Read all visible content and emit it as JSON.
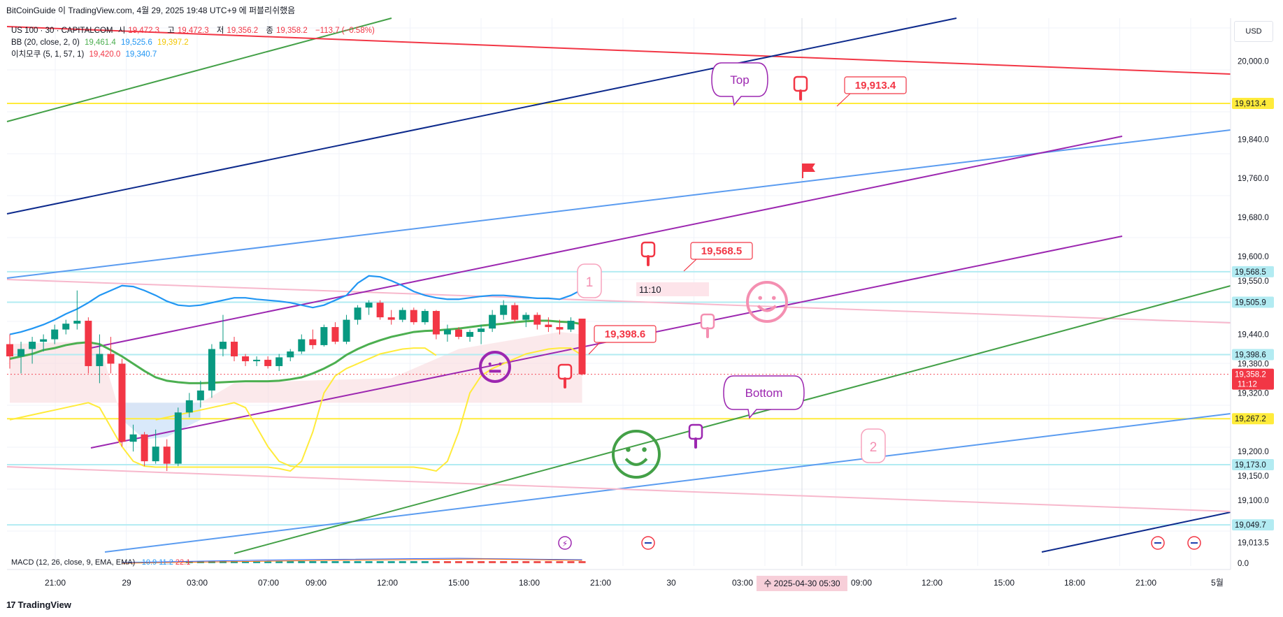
{
  "header": {
    "credit": "BitCoinGuide 이 TradingView.com, 4월 29, 2025 19:48 UTC+9 에 퍼블리쉬했음"
  },
  "legend": {
    "symbol": "US 100 · 30 · CAPITALCOM",
    "ohlc": [
      {
        "label": "시",
        "value": "19,472.3"
      },
      {
        "label": "고",
        "value": "19,472.3"
      },
      {
        "label": "저",
        "value": "19,356.2"
      },
      {
        "label": "종",
        "value": "19,358.2"
      }
    ],
    "change": "−113.7 (−0.58%)",
    "bb": {
      "label": "BB (20, close, 2, 0)",
      "values": [
        "19,461.4",
        "19,525.6",
        "19,397.2"
      ]
    },
    "ichimoku": {
      "label": "이치모쿠 (5, 1, 57, 1)",
      "values": [
        "19,420.0",
        "19,340.7"
      ]
    },
    "macd": {
      "label": "MACD (12, 26, close, 9, EMA, EMA)",
      "values": [
        "−10.9",
        "11.2",
        "22.1"
      ]
    }
  },
  "currency": "USD",
  "footer": {
    "brand": "TradingView",
    "mark": "17"
  },
  "colors": {
    "up": "#089981",
    "down": "#f23645",
    "bb_mid": "#4caf50",
    "bb_band": "#2196f3",
    "ichimoku": "#ffeb3b",
    "channel_purple": "#9c27b0",
    "navy": "#0d2a8c",
    "light_blue": "#5b9cf0",
    "pink": "#f7b8cc",
    "cyan": "#b2ebf2",
    "yellow_level": "#ffeb3b"
  },
  "chart_data": {
    "type": "candlestick",
    "y_axis_ticks": [
      "20,000.0",
      "19,840.0",
      "19,760.0",
      "19,680.0",
      "19,600.0",
      "19,550.0",
      "19,440.0",
      "19,380.0",
      "19,320.0",
      "19,200.0",
      "19,150.0",
      "19,100.0",
      "19,013.5",
      "0.0"
    ],
    "x_axis_ticks": [
      "21:00",
      "29",
      "03:00",
      "07:00",
      "09:00",
      "12:00",
      "15:00",
      "18:00",
      "21:00",
      "30",
      "03:00",
      "09:00",
      "12:00",
      "15:00",
      "18:00",
      "21:00",
      "5월"
    ],
    "crosshair_x_label": "수 2025-04-30 05:30",
    "price_labels": [
      {
        "value": "19,913.4",
        "price": 19913.4,
        "style": "yellow"
      },
      {
        "value": "19,568.5",
        "price": 19568.5,
        "style": "cyan"
      },
      {
        "value": "19,505.9",
        "price": 19505.9,
        "style": "cyan"
      },
      {
        "value": "19,398.6",
        "price": 19398.6,
        "style": "cyan"
      },
      {
        "value": "19,358.2",
        "price": 19358.2,
        "style": "last",
        "sub": "11:12"
      },
      {
        "value": "19,267.2",
        "price": 19267.2,
        "style": "yellow"
      },
      {
        "value": "19,173.0",
        "price": 19173.0,
        "style": "cyan"
      },
      {
        "value": "19,049.7",
        "price": 19049.7,
        "style": "cyan"
      }
    ],
    "callouts": [
      {
        "text": "19,913.4",
        "price": 19913.4
      },
      {
        "text": "19,568.5",
        "price": 19568.5
      },
      {
        "text": "19,398.6",
        "price": 19398.6
      }
    ],
    "annotations": {
      "top": "Top",
      "bottom": "Bottom",
      "wave_1": "1",
      "wave_2": "2",
      "time_box": "11:10"
    },
    "candles": [
      {
        "o": 19420,
        "h": 19440,
        "l": 19370,
        "c": 19395
      },
      {
        "o": 19395,
        "h": 19425,
        "l": 19360,
        "c": 19410
      },
      {
        "o": 19410,
        "h": 19435,
        "l": 19380,
        "c": 19425
      },
      {
        "o": 19425,
        "h": 19440,
        "l": 19405,
        "c": 19430
      },
      {
        "o": 19430,
        "h": 19460,
        "l": 19420,
        "c": 19450
      },
      {
        "o": 19450,
        "h": 19470,
        "l": 19440,
        "c": 19462
      },
      {
        "o": 19462,
        "h": 19530,
        "l": 19450,
        "c": 19468
      },
      {
        "o": 19468,
        "h": 19475,
        "l": 19360,
        "c": 19375
      },
      {
        "o": 19375,
        "h": 19440,
        "l": 19340,
        "c": 19400
      },
      {
        "o": 19400,
        "h": 19435,
        "l": 19360,
        "c": 19380
      },
      {
        "o": 19380,
        "h": 19390,
        "l": 19210,
        "c": 19220
      },
      {
        "o": 19220,
        "h": 19255,
        "l": 19200,
        "c": 19235
      },
      {
        "o": 19235,
        "h": 19240,
        "l": 19170,
        "c": 19180
      },
      {
        "o": 19180,
        "h": 19245,
        "l": 19175,
        "c": 19210
      },
      {
        "o": 19210,
        "h": 19225,
        "l": 19160,
        "c": 19175
      },
      {
        "o": 19175,
        "h": 19290,
        "l": 19170,
        "c": 19280
      },
      {
        "o": 19280,
        "h": 19320,
        "l": 19270,
        "c": 19305
      },
      {
        "o": 19305,
        "h": 19345,
        "l": 19290,
        "c": 19325
      },
      {
        "o": 19325,
        "h": 19420,
        "l": 19310,
        "c": 19410
      },
      {
        "o": 19410,
        "h": 19480,
        "l": 19395,
        "c": 19425
      },
      {
        "o": 19425,
        "h": 19435,
        "l": 19385,
        "c": 19395
      },
      {
        "o": 19395,
        "h": 19400,
        "l": 19375,
        "c": 19385
      },
      {
        "o": 19385,
        "h": 19395,
        "l": 19375,
        "c": 19388
      },
      {
        "o": 19388,
        "h": 19395,
        "l": 19370,
        "c": 19375
      },
      {
        "o": 19375,
        "h": 19400,
        "l": 19365,
        "c": 19393
      },
      {
        "o": 19393,
        "h": 19410,
        "l": 19385,
        "c": 19405
      },
      {
        "o": 19405,
        "h": 19440,
        "l": 19400,
        "c": 19430
      },
      {
        "o": 19430,
        "h": 19450,
        "l": 19410,
        "c": 19418
      },
      {
        "o": 19418,
        "h": 19460,
        "l": 19415,
        "c": 19455
      },
      {
        "o": 19455,
        "h": 19465,
        "l": 19420,
        "c": 19425
      },
      {
        "o": 19425,
        "h": 19480,
        "l": 19420,
        "c": 19470
      },
      {
        "o": 19470,
        "h": 19500,
        "l": 19460,
        "c": 19495
      },
      {
        "o": 19495,
        "h": 19510,
        "l": 19480,
        "c": 19505
      },
      {
        "o": 19505,
        "h": 19510,
        "l": 19470,
        "c": 19475
      },
      {
        "o": 19475,
        "h": 19490,
        "l": 19460,
        "c": 19470
      },
      {
        "o": 19470,
        "h": 19495,
        "l": 19465,
        "c": 19490
      },
      {
        "o": 19490,
        "h": 19495,
        "l": 19460,
        "c": 19465
      },
      {
        "o": 19465,
        "h": 19492,
        "l": 19460,
        "c": 19488
      },
      {
        "o": 19488,
        "h": 19490,
        "l": 19430,
        "c": 19440
      },
      {
        "o": 19440,
        "h": 19460,
        "l": 19425,
        "c": 19450
      },
      {
        "o": 19450,
        "h": 19455,
        "l": 19430,
        "c": 19435
      },
      {
        "o": 19435,
        "h": 19450,
        "l": 19425,
        "c": 19445
      },
      {
        "o": 19445,
        "h": 19460,
        "l": 19420,
        "c": 19452
      },
      {
        "o": 19452,
        "h": 19490,
        "l": 19445,
        "c": 19480
      },
      {
        "o": 19480,
        "h": 19510,
        "l": 19470,
        "c": 19500
      },
      {
        "o": 19500,
        "h": 19505,
        "l": 19465,
        "c": 19470
      },
      {
        "o": 19470,
        "h": 19485,
        "l": 19455,
        "c": 19480
      },
      {
        "o": 19480,
        "h": 19485,
        "l": 19450,
        "c": 19460
      },
      {
        "o": 19460,
        "h": 19475,
        "l": 19445,
        "c": 19455
      },
      {
        "o": 19455,
        "h": 19470,
        "l": 19440,
        "c": 19450
      },
      {
        "o": 19450,
        "h": 19475,
        "l": 19445,
        "c": 19468
      },
      {
        "o": 19472.3,
        "h": 19472.3,
        "l": 19356.2,
        "c": 19358.2
      }
    ],
    "bb_upper": [
      19440,
      19445,
      19452,
      19460,
      19470,
      19482,
      19492,
      19505,
      19520,
      19530,
      19540,
      19538,
      19530,
      19520,
      19508,
      19500,
      19498,
      19500,
      19505,
      19510,
      19515,
      19515,
      19512,
      19510,
      19508,
      19505,
      19500,
      19495,
      19500,
      19510,
      19520,
      19545,
      19560,
      19558,
      19550,
      19540,
      19528,
      19520,
      19515,
      19512,
      19512,
      19515,
      19518,
      19520,
      19520,
      19518,
      19516,
      19514,
      19514,
      19512,
      19520,
      19532
    ],
    "bb_mid": [
      19390,
      19395,
      19400,
      19408,
      19412,
      19418,
      19422,
      19424,
      19420,
      19408,
      19395,
      19380,
      19365,
      19352,
      19345,
      19342,
      19340,
      19340,
      19341,
      19342,
      19343,
      19344,
      19344,
      19344,
      19345,
      19348,
      19352,
      19360,
      19370,
      19382,
      19398,
      19410,
      19420,
      19428,
      19435,
      19440,
      19445,
      19447,
      19448,
      19450,
      19452,
      19455,
      19458,
      19460,
      19462,
      19465,
      19467,
      19468,
      19468,
      19466,
      19465,
      19461
    ],
    "ichimoku_lag": [
      19265,
      19270,
      19275,
      19280,
      19285,
      19290,
      19295,
      19300,
      19290,
      19250,
      19210,
      19180,
      19170,
      19168,
      19168,
      19168,
      19168,
      19168,
      19168,
      19168,
      19168,
      19168,
      19168,
      19168,
      19165,
      19160,
      19180,
      19240,
      19320,
      19355,
      19370,
      19380,
      19390,
      19400,
      19405,
      19410,
      19412,
      19412,
      19397
    ]
  }
}
